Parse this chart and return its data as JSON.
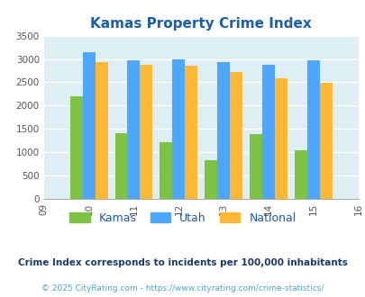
{
  "title": "Kamas Property Crime Index",
  "years": [
    2009,
    2010,
    2011,
    2012,
    2013,
    2014,
    2015,
    2016
  ],
  "bar_years": [
    2010,
    2011,
    2012,
    2013,
    2014,
    2015
  ],
  "kamas": [
    2200,
    1400,
    1220,
    840,
    1390,
    1040
  ],
  "utah": [
    3150,
    2970,
    2990,
    2940,
    2870,
    2970
  ],
  "national": [
    2940,
    2880,
    2850,
    2720,
    2590,
    2490
  ],
  "color_kamas": "#7dc242",
  "color_utah": "#4da6ff",
  "color_national": "#ffb833",
  "bg_color": "#ddeef5",
  "ylim": [
    0,
    3500
  ],
  "yticks": [
    0,
    500,
    1000,
    1500,
    2000,
    2500,
    3000,
    3500
  ],
  "legend_labels": [
    "Kamas",
    "Utah",
    "National"
  ],
  "footnote1": "Crime Index corresponds to incidents per 100,000 inhabitants",
  "footnote2": "© 2025 CityRating.com - https://www.cityrating.com/crime-statistics/",
  "title_color": "#1a5fa8",
  "footnote1_color": "#1a3a6a",
  "footnote2_color": "#4da6cc",
  "legend_text_color": "#2255aa",
  "bar_width": 0.28
}
